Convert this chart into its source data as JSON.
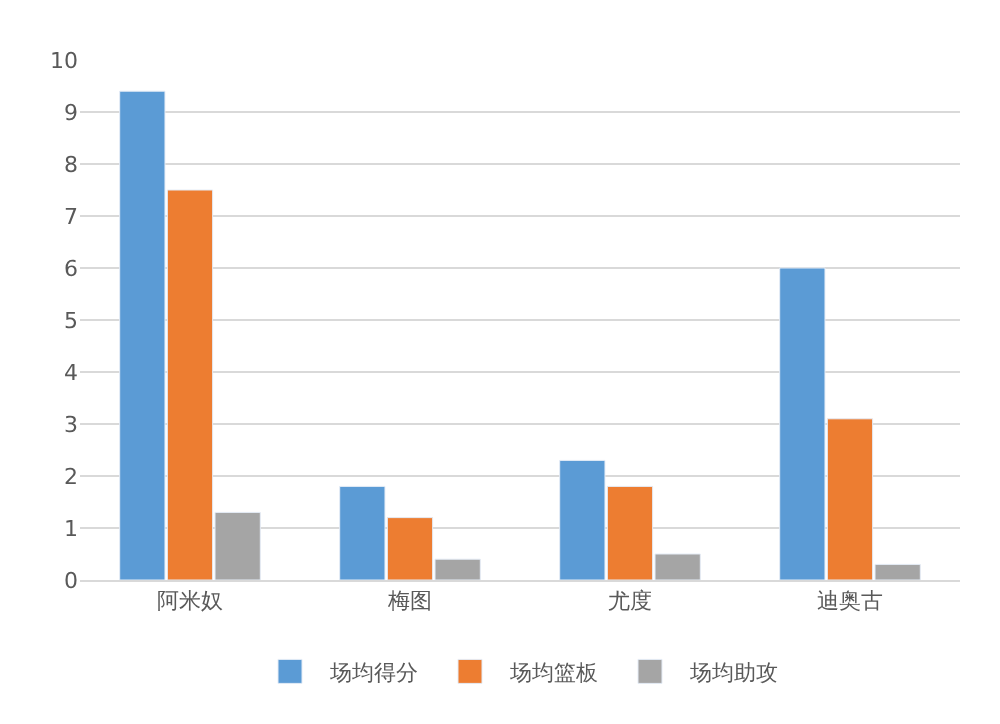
{
  "chart_data": {
    "type": "bar",
    "categories": [
      "阿米奴",
      "梅图",
      "尤度",
      "迪奥古"
    ],
    "series": [
      {
        "name": "场均得分",
        "color": "#5b9bd5",
        "values": [
          9.4,
          1.8,
          2.3,
          6.0
        ]
      },
      {
        "name": "场均篮板",
        "color": "#ed7d31",
        "values": [
          7.5,
          1.2,
          1.8,
          3.1
        ]
      },
      {
        "name": "场均助攻",
        "color": "#a5a5a5",
        "values": [
          1.3,
          0.4,
          0.5,
          0.3
        ]
      }
    ],
    "ylim": [
      0,
      10
    ],
    "yticks": [
      0,
      1,
      2,
      3,
      4,
      5,
      6,
      7,
      8,
      9,
      10
    ],
    "grid": "y",
    "legend": "bottom"
  }
}
